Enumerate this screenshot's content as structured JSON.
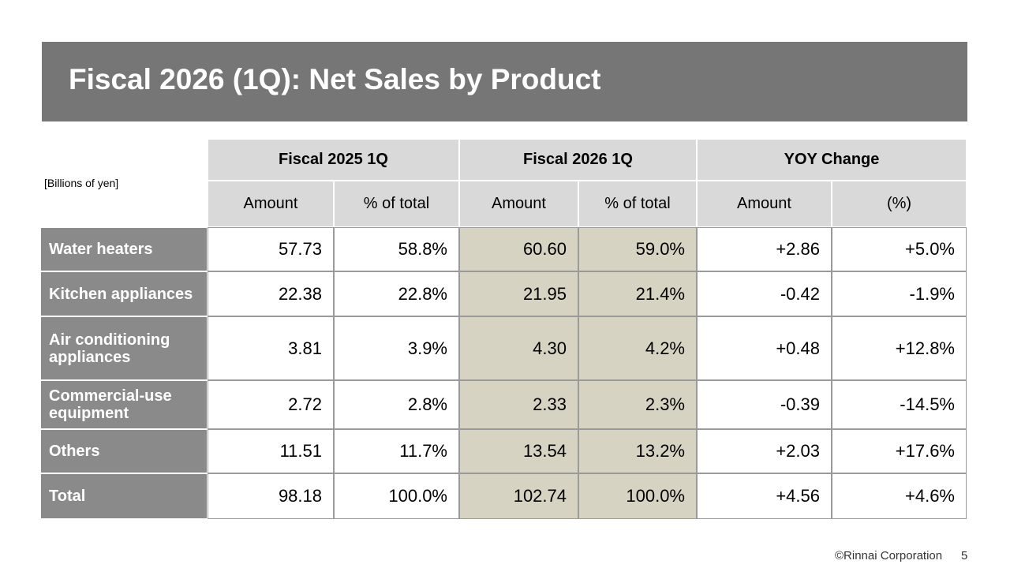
{
  "header": {
    "title": "Fiscal 2026 (1Q): Net Sales by Product"
  },
  "table": {
    "unit": "[Billions of yen]",
    "groups": [
      "Fiscal 2025 1Q",
      "Fiscal 2026 1Q",
      "YOY Change"
    ],
    "columns": [
      "Amount",
      "% of total",
      "Amount",
      "% of total",
      "Amount",
      "(%)"
    ],
    "rows": [
      [
        "Water heaters",
        "57.73",
        "58.8%",
        "60.60",
        "59.0%",
        "+2.86",
        "+5.0%"
      ],
      [
        "Kitchen appliances",
        "22.38",
        "22.8%",
        "21.95",
        "21.4%",
        "-0.42",
        "-1.9%"
      ],
      [
        "Air conditioning appliances",
        "3.81",
        "3.9%",
        "4.30",
        "4.2%",
        "+0.48",
        "+12.8%"
      ],
      [
        "Commercial-use equipment",
        "2.72",
        "2.8%",
        "2.33",
        "2.3%",
        "-0.39",
        "-14.5%"
      ],
      [
        "Others",
        "11.51",
        "11.7%",
        "13.54",
        "13.2%",
        "+2.03",
        "+17.6%"
      ],
      [
        "Total",
        "98.18",
        "100.0%",
        "102.74",
        "100.0%",
        "+4.56",
        "+4.6%"
      ]
    ]
  },
  "footer": {
    "copyright": "©Rinnai Corporation",
    "page": "5"
  }
}
